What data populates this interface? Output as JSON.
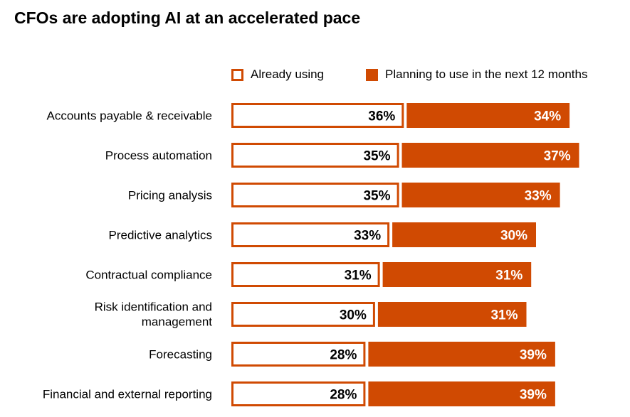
{
  "chart_data": {
    "type": "bar",
    "title": "CFOs are adopting AI at an accelerated pace",
    "stacked": true,
    "orientation": "horizontal",
    "categories": [
      "Accounts payable & receivable",
      "Process automation",
      "Pricing analysis",
      "Predictive analytics",
      "Contractual compliance",
      "Risk identification and management",
      "Forecasting",
      "Financial and external reporting"
    ],
    "category_lines": [
      [
        "Accounts payable & receivable"
      ],
      [
        "Process automation"
      ],
      [
        "Pricing analysis"
      ],
      [
        "Predictive analytics"
      ],
      [
        "Contractual compliance"
      ],
      [
        "Risk identification and",
        "management"
      ],
      [
        "Forecasting"
      ],
      [
        "Financial and external reporting"
      ]
    ],
    "series": [
      {
        "name": "Already using",
        "values": [
          36,
          35,
          35,
          33,
          31,
          30,
          28,
          28
        ],
        "labels": [
          "36%",
          "35%",
          "35%",
          "33%",
          "31%",
          "30%",
          "28%",
          "28%"
        ],
        "style": "outline",
        "color": "#d04a02"
      },
      {
        "name": "Planning to use in the next 12 months",
        "values": [
          34,
          37,
          33,
          30,
          31,
          31,
          39,
          39
        ],
        "labels": [
          "34%",
          "37%",
          "33%",
          "30%",
          "31%",
          "31%",
          "39%",
          "39%"
        ],
        "style": "filled",
        "color": "#d04a02"
      }
    ],
    "unit": "%",
    "legend_position": "top",
    "grid": false
  }
}
